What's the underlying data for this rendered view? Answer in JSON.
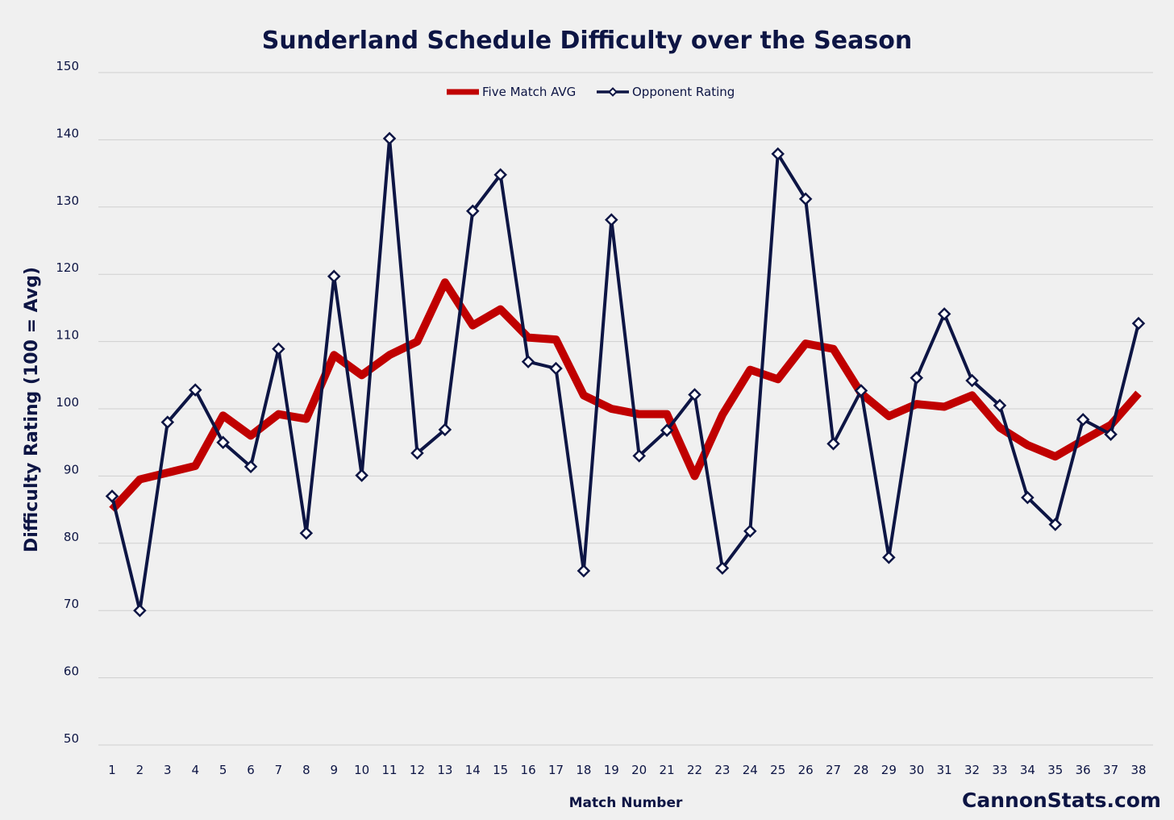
{
  "chart_data": {
    "type": "line",
    "title": "Sunderland Schedule Difficulty over the Season",
    "xlabel": "Match Number",
    "ylabel": "Difficulty Rating (100 = Avg)",
    "ylim": [
      50,
      150
    ],
    "yticks": [
      50,
      60,
      70,
      80,
      90,
      100,
      110,
      120,
      130,
      140,
      150
    ],
    "categories": [
      "1",
      "2",
      "3",
      "4",
      "5",
      "6",
      "7",
      "8",
      "9",
      "10",
      "11",
      "12",
      "13",
      "14",
      "15",
      "16",
      "17",
      "18",
      "19",
      "20",
      "21",
      "22",
      "23",
      "24",
      "25",
      "26",
      "27",
      "28",
      "29",
      "30",
      "31",
      "32",
      "33",
      "34",
      "35",
      "36",
      "37",
      "38"
    ],
    "grid": true,
    "legend_position": "top-center",
    "series": [
      {
        "name": "Five Match AVG",
        "color": "#c00000",
        "marker": "none",
        "values": [
          85.0,
          89.5,
          90.5,
          91.5,
          99.0,
          96.0,
          99.2,
          98.5,
          108.0,
          105.0,
          108.0,
          110.0,
          118.8,
          112.4,
          114.8,
          110.6,
          110.3,
          102.0,
          100.0,
          99.2,
          99.2,
          90.0,
          99.1,
          105.8,
          104.4,
          109.7,
          108.9,
          102.3,
          98.9,
          100.7,
          100.3,
          102.0,
          97.2,
          94.6,
          92.9,
          95.3,
          97.6,
          102.3
        ]
      },
      {
        "name": "Opponent Rating",
        "color": "#0d1544",
        "marker": "diamond",
        "values": [
          87.0,
          70.0,
          98.0,
          102.8,
          95.0,
          91.4,
          108.9,
          81.5,
          119.7,
          90.1,
          140.2,
          93.4,
          96.9,
          129.4,
          134.8,
          107.0,
          106.0,
          75.9,
          128.1,
          93.0,
          96.8,
          102.1,
          76.3,
          81.8,
          137.9,
          131.2,
          94.8,
          102.7,
          77.9,
          104.6,
          114.1,
          104.2,
          100.5,
          86.8,
          82.8,
          98.4,
          96.2,
          112.7
        ]
      }
    ]
  },
  "watermark": "CannonStats.com"
}
